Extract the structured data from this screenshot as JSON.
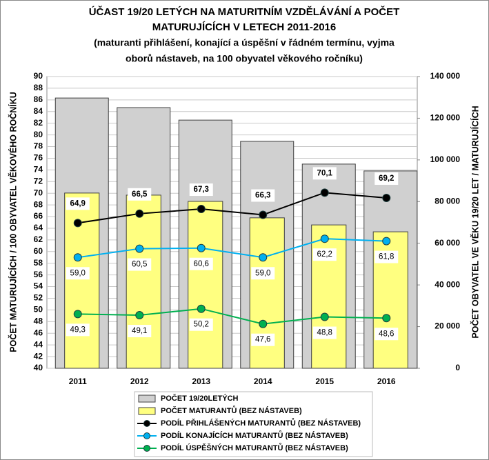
{
  "chart_data": {
    "type": "combo",
    "title": [
      "ÚČAST 19/20 LETÝCH NA MATURITNÍM VZDĚLÁVÁNÍ A POČET",
      "MATURUJÍCÍCH V LETECH 2011-2016"
    ],
    "subtitle": [
      "(maturanti přihlášení, konající a úspěšní v řádném termínu, vyjma",
      "oborů nástaveb, na 100 obyvatel věkového ročníku)"
    ],
    "y_label": "POČET MATURUJÍCÍCH / 100 OBYVATEL VĚKOVÉHO ROČNÍKU",
    "y2_label": "POČET OBYVATEL VE VĚKU 19/20 LET / MATURUJÍCÍCH",
    "categories": [
      "2011",
      "2012",
      "2013",
      "2014",
      "2015",
      "2016"
    ],
    "ylim": [
      40,
      90
    ],
    "yticks": [
      40,
      42,
      44,
      46,
      48,
      50,
      52,
      54,
      56,
      58,
      60,
      62,
      64,
      66,
      68,
      70,
      72,
      74,
      76,
      78,
      80,
      82,
      84,
      86,
      88,
      90
    ],
    "y2lim": [
      0,
      140000
    ],
    "y2ticks": [
      {
        "value": 0,
        "label": "0"
      },
      {
        "value": 20000,
        "label": "20 000"
      },
      {
        "value": 40000,
        "label": "40 000"
      },
      {
        "value": 60000,
        "label": "60 000"
      },
      {
        "value": 80000,
        "label": "80 000"
      },
      {
        "value": 100000,
        "label": "100 000"
      },
      {
        "value": 120000,
        "label": "120 000"
      },
      {
        "value": 140000,
        "label": "140 000"
      }
    ],
    "grid": true,
    "series": [
      {
        "name": "POČET 19/20LETÝCH",
        "type": "bar",
        "axis": "y2",
        "color": "#d0d0d0",
        "values": [
          129700,
          125100,
          119100,
          108900,
          98000,
          94700
        ]
      },
      {
        "name": "POČET MATURANTŮ (BEZ NÁSTAVEB)",
        "type": "bar",
        "axis": "y2",
        "color": "#ffff80",
        "values": [
          84100,
          83100,
          80100,
          72200,
          68800,
          65500
        ]
      },
      {
        "name": "PODÍL PŘIHLÁŠENÝCH MATURANTŮ (BEZ NÁSTAVEB)",
        "type": "line",
        "color": "#000000",
        "values": [
          64.9,
          66.5,
          67.3,
          66.3,
          70.1,
          69.2
        ],
        "value_labels": [
          "64,9",
          "66,5",
          "67,3",
          "66,3",
          "70,1",
          "69,2"
        ]
      },
      {
        "name": "PODÍL KONAJÍCÍCH MATURANTŮ (BEZ NÁSTAVEB)",
        "type": "line",
        "color": "#00b0f0",
        "values": [
          59.0,
          60.5,
          60.6,
          59.0,
          62.2,
          61.8
        ],
        "value_labels": [
          "59,0",
          "60,5",
          "60,6",
          "59,0",
          "62,2",
          "61,8"
        ]
      },
      {
        "name": "PODÍL ÚSPĚŠNÝCH MATURANTŮ (BEZ NÁSTAVEB)",
        "type": "line",
        "color": "#00b050",
        "values": [
          49.3,
          49.1,
          50.2,
          47.6,
          48.8,
          48.6
        ],
        "value_labels": [
          "49,3",
          "49,1",
          "50,2",
          "47,6",
          "48,8",
          "48,6"
        ]
      }
    ]
  }
}
